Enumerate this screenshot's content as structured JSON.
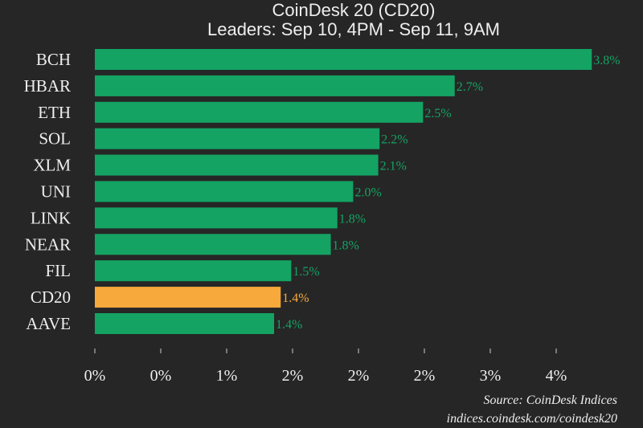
{
  "chart_data": {
    "type": "bar",
    "orientation": "horizontal",
    "title": "CoinDesk 20 (CD20)",
    "subtitle": "Leaders: Sep 10, 4PM - Sep 11, 9AM",
    "categories": [
      "BCH",
      "HBAR",
      "ETH",
      "SOL",
      "XLM",
      "UNI",
      "LINK",
      "NEAR",
      "FIL",
      "CD20",
      "AAVE"
    ],
    "values": [
      3.77,
      2.73,
      2.49,
      2.16,
      2.15,
      1.96,
      1.84,
      1.79,
      1.49,
      1.41,
      1.36
    ],
    "data_labels": [
      "3.8%",
      "2.7%",
      "2.5%",
      "2.2%",
      "2.1%",
      "2.0%",
      "1.8%",
      "1.8%",
      "1.5%",
      "1.4%",
      "1.4%"
    ],
    "highlight_category": "CD20",
    "xticks": [
      0,
      0.5,
      1,
      1.5,
      2,
      2.5,
      3,
      3.5
    ],
    "xtick_labels": [
      "0%",
      "0%",
      "1%",
      "2%",
      "2%",
      "2%",
      "3%",
      "4%"
    ],
    "xlim": [
      0,
      4.1
    ],
    "xlabel": "",
    "ylabel": "",
    "grid": false,
    "colors": {
      "bar": "#14a363",
      "highlight": "#f7a93b",
      "label": "#14a363",
      "highlight_label": "#f7a93b",
      "background": "#262626"
    }
  },
  "source": {
    "line1": "Source: CoinDesk Indices",
    "line2": "indices.coindesk.com/coindesk20"
  }
}
